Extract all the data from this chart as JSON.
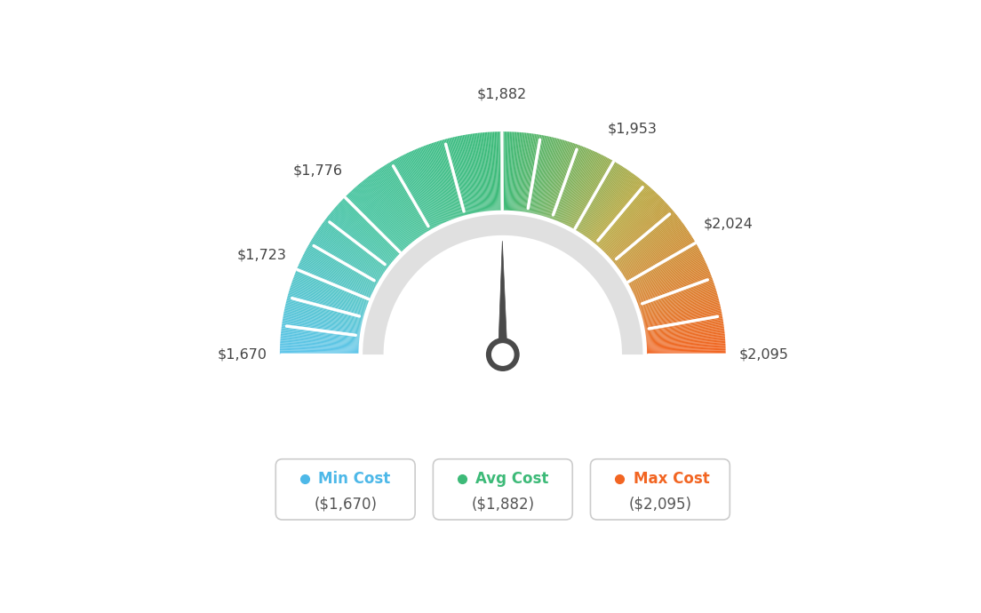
{
  "min_val": 1670,
  "max_val": 2095,
  "avg_val": 1882,
  "tick_labels": [
    "$1,670",
    "$1,723",
    "$1,776",
    "$1,882",
    "$1,953",
    "$2,024",
    "$2,095"
  ],
  "tick_values": [
    1670,
    1723,
    1776,
    1882,
    1953,
    2024,
    2095
  ],
  "legend": [
    {
      "label": "Min Cost",
      "sublabel": "($1,670)",
      "color": "#4db8e8"
    },
    {
      "label": "Avg Cost",
      "sublabel": "($1,882)",
      "color": "#3dba78"
    },
    {
      "label": "Max Cost",
      "sublabel": "($2,095)",
      "color": "#f26522"
    }
  ],
  "background_color": "#ffffff",
  "color_stops": [
    [
      0.0,
      "#5ec5ea"
    ],
    [
      0.25,
      "#45c4a0"
    ],
    [
      0.5,
      "#3dba78"
    ],
    [
      0.72,
      "#b8a840"
    ],
    [
      1.0,
      "#f26522"
    ]
  ]
}
